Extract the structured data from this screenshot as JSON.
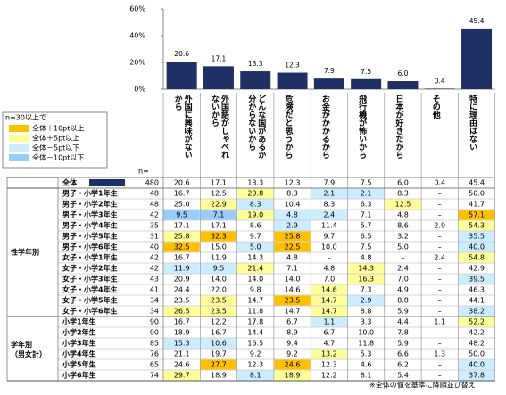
{
  "chart_data": {
    "type": "bar",
    "categories": [
      "外国に興味がないから",
      "外国語がしゃべれないから",
      "どんな国があるか分からないから",
      "危険だと思うから",
      "お金がかかるから",
      "飛行機が怖いから",
      "日本が好きだから",
      "その他",
      "特に理由はない"
    ],
    "values": [
      20.6,
      17.1,
      13.3,
      12.3,
      7.9,
      7.5,
      6.0,
      0.4,
      45.4
    ],
    "value_labels": [
      "20.6",
      "17.1",
      "13.3",
      "12.3",
      "7.9",
      "7.5",
      "6.0",
      "0.4",
      "45.4"
    ],
    "color": "#1f3064",
    "ylim": [
      0,
      60
    ],
    "yticks": [
      {
        "value": 0,
        "label": "0%"
      },
      {
        "value": 20,
        "label": "20%"
      },
      {
        "value": 40,
        "label": "40%"
      },
      {
        "value": 60,
        "label": "60%"
      }
    ]
  },
  "legend": {
    "title": "n=30以上で",
    "items": [
      {
        "label": "全体＋10pt以上",
        "color": "#ffc000"
      },
      {
        "label": "全体＋5pt以上",
        "color": "#ffff99"
      },
      {
        "label": "全体－5pt以下",
        "color": "#ccecff"
      },
      {
        "label": "全体－10pt以下",
        "color": "#99ccff"
      }
    ]
  },
  "table": {
    "n_header": "n=",
    "total": {
      "label": "全体",
      "n": "480",
      "cells": [
        "20.6",
        "17.1",
        "13.3",
        "12.3",
        "7.9",
        "7.5",
        "6.0",
        "0.4",
        "45.4"
      ]
    },
    "groups": [
      {
        "label": "性学年別",
        "rows": [
          {
            "label": "男子・小学1年生",
            "n": "48",
            "cells": [
              "16.7",
              "12.5",
              "20.8",
              "8.3",
              "2.1",
              "2.1",
              "8.3",
              "–",
              "50.0"
            ],
            "colors": [
              null,
              null,
              "#ffff99",
              null,
              "#ccecff",
              "#ccecff",
              null,
              null,
              null
            ]
          },
          {
            "label": "男子・小学2年生",
            "n": "48",
            "cells": [
              "25.0",
              "22.9",
              "8.3",
              "10.4",
              "8.3",
              "6.3",
              "12.5",
              "–",
              "41.7"
            ],
            "colors": [
              null,
              "#ffff99",
              "#ccecff",
              null,
              null,
              null,
              "#ffff99",
              null,
              null
            ]
          },
          {
            "label": "男子・小学3年生",
            "n": "42",
            "cells": [
              "9.5",
              "7.1",
              "19.0",
              "4.8",
              "2.4",
              "7.1",
              "4.8",
              "–",
              "57.1"
            ],
            "colors": [
              "#99ccff",
              "#99ccff",
              "#ffff99",
              "#ccecff",
              "#ccecff",
              null,
              null,
              null,
              "#ffc000"
            ]
          },
          {
            "label": "男子・小学4年生",
            "n": "35",
            "cells": [
              "17.1",
              "17.1",
              "8.6",
              "2.9",
              "11.4",
              "5.7",
              "8.6",
              "2.9",
              "54.3"
            ],
            "colors": [
              null,
              null,
              null,
              "#ccecff",
              null,
              null,
              null,
              null,
              "#ffff99"
            ]
          },
          {
            "label": "男子・小学5年生",
            "n": "31",
            "cells": [
              "25.8",
              "32.3",
              "9.7",
              "25.8",
              "9.7",
              "6.5",
              "3.2",
              "–",
              "35.5"
            ],
            "colors": [
              "#ffff99",
              "#ffc000",
              null,
              "#ffc000",
              null,
              null,
              null,
              null,
              "#ccecff"
            ]
          },
          {
            "label": "男子・小学6年生",
            "n": "40",
            "cells": [
              "32.5",
              "15.0",
              "5.0",
              "22.5",
              "10.0",
              "7.5",
              "5.0",
              "–",
              "40.0"
            ],
            "colors": [
              "#ffc000",
              null,
              "#ccecff",
              "#ffc000",
              null,
              null,
              null,
              null,
              "#ccecff"
            ]
          },
          {
            "label": "女子・小学1年生",
            "n": "42",
            "cells": [
              "16.7",
              "11.9",
              "14.3",
              "4.8",
              "–",
              "4.8",
              "–",
              "2.4",
              "54.8"
            ],
            "colors": [
              null,
              null,
              null,
              null,
              null,
              null,
              null,
              null,
              "#ffff99"
            ]
          },
          {
            "label": "女子・小学2年生",
            "n": "42",
            "cells": [
              "11.9",
              "9.5",
              "21.4",
              "7.1",
              "4.8",
              "14.3",
              "2.4",
              "–",
              "42.9"
            ],
            "colors": [
              "#ccecff",
              "#ccecff",
              "#ffff99",
              null,
              null,
              "#ffff99",
              null,
              null,
              null
            ]
          },
          {
            "label": "女子・小学3年生",
            "n": "43",
            "cells": [
              "20.9",
              "14.0",
              "14.0",
              "14.0",
              "7.0",
              "16.3",
              "7.0",
              "–",
              "39.5"
            ],
            "colors": [
              null,
              null,
              null,
              null,
              null,
              "#ffff99",
              null,
              null,
              "#ccecff"
            ]
          },
          {
            "label": "女子・小学4年生",
            "n": "41",
            "cells": [
              "24.4",
              "22.0",
              "9.8",
              "14.6",
              "14.6",
              "7.3",
              "4.9",
              "–",
              "46.3"
            ],
            "colors": [
              null,
              null,
              null,
              null,
              "#ffff99",
              null,
              null,
              null,
              null
            ]
          },
          {
            "label": "女子・小学5年生",
            "n": "34",
            "cells": [
              "23.5",
              "23.5",
              "14.7",
              "23.5",
              "14.7",
              "2.9",
              "8.8",
              "–",
              "44.1"
            ],
            "colors": [
              null,
              "#ffff99",
              null,
              "#ffc000",
              "#ffff99",
              "#ccecff",
              null,
              null,
              null
            ]
          },
          {
            "label": "女子・小学6年生",
            "n": "34",
            "cells": [
              "26.5",
              "23.5",
              "11.8",
              "14.7",
              "14.7",
              "8.8",
              "5.9",
              "–",
              "38.2"
            ],
            "colors": [
              "#ffff99",
              "#ffff99",
              null,
              null,
              "#ffff99",
              null,
              null,
              null,
              "#ccecff"
            ]
          }
        ]
      },
      {
        "label": "学年別（男女計）",
        "rows": [
          {
            "label": "小学1年生",
            "n": "90",
            "cells": [
              "16.7",
              "12.2",
              "17.8",
              "6.7",
              "1.1",
              "3.3",
              "4.4",
              "1.1",
              "52.2"
            ],
            "colors": [
              null,
              null,
              null,
              null,
              "#ccecff",
              null,
              null,
              null,
              "#ffff99"
            ]
          },
          {
            "label": "小学2年生",
            "n": "90",
            "cells": [
              "18.9",
              "16.7",
              "14.4",
              "8.9",
              "6.7",
              "10.0",
              "7.8",
              "–",
              "42.2"
            ],
            "colors": [
              null,
              null,
              null,
              null,
              null,
              null,
              null,
              null,
              null
            ]
          },
          {
            "label": "小学3年生",
            "n": "85",
            "cells": [
              "15.3",
              "10.6",
              "16.5",
              "9.4",
              "4.7",
              "11.8",
              "5.9",
              "–",
              "48.2"
            ],
            "colors": [
              "#ccecff",
              "#ccecff",
              null,
              null,
              null,
              null,
              null,
              null,
              null
            ]
          },
          {
            "label": "小学4年生",
            "n": "76",
            "cells": [
              "21.1",
              "19.7",
              "9.2",
              "9.2",
              "13.2",
              "5.3",
              "6.6",
              "1.3",
              "50.0"
            ],
            "colors": [
              null,
              null,
              null,
              null,
              "#ffff99",
              null,
              null,
              null,
              null
            ]
          },
          {
            "label": "小学5年生",
            "n": "65",
            "cells": [
              "24.6",
              "27.7",
              "12.3",
              "24.6",
              "12.3",
              "4.6",
              "6.2",
              "–",
              "40.0"
            ],
            "colors": [
              null,
              "#ffc000",
              null,
              "#ffc000",
              null,
              null,
              null,
              null,
              "#ccecff"
            ]
          },
          {
            "label": "小学6年生",
            "n": "74",
            "cells": [
              "29.7",
              "18.9",
              "8.1",
              "18.9",
              "12.2",
              "8.1",
              "5.4",
              "–",
              "37.8"
            ],
            "colors": [
              "#ffff99",
              null,
              "#ccecff",
              "#ffff99",
              null,
              null,
              null,
              null,
              "#ccecff"
            ]
          }
        ]
      }
    ]
  },
  "footnote": "※全体の値を基準に降順並び替え"
}
